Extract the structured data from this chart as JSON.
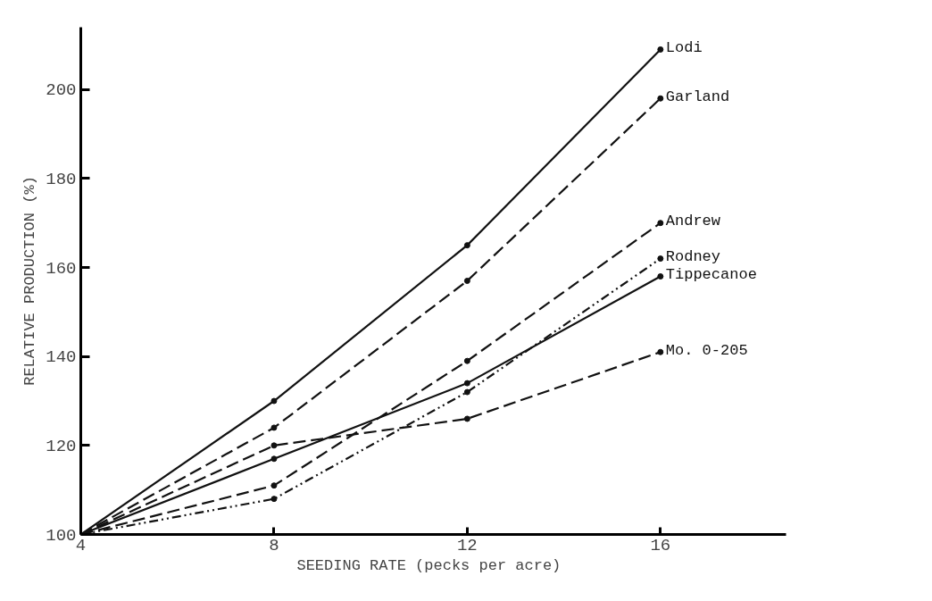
{
  "chart_data": {
    "type": "line",
    "xlabel": "SEEDING RATE  (pecks per acre)",
    "ylabel": "RELATIVE PRODUCTION (%)",
    "x": [
      4,
      8,
      12,
      16
    ],
    "xlim": [
      4,
      18.6
    ],
    "xticks": [
      4,
      8,
      12,
      16
    ],
    "ylim": [
      100,
      214
    ],
    "yticks": [
      100,
      120,
      140,
      160,
      180,
      200
    ],
    "grid": false,
    "marker": "circle",
    "series": [
      {
        "name": "Lodi",
        "color": "#111111",
        "line_style": "solid",
        "values": [
          100,
          130,
          165,
          209
        ]
      },
      {
        "name": "Garland",
        "color": "#111111",
        "line_style": "dashed",
        "values": [
          100,
          124,
          157,
          198
        ]
      },
      {
        "name": "Andrew",
        "color": "#111111",
        "line_style": "dashed",
        "values": [
          100,
          111,
          139,
          170
        ]
      },
      {
        "name": "Rodney",
        "color": "#111111",
        "line_style": "dotted",
        "values": [
          100,
          108,
          132,
          162
        ]
      },
      {
        "name": "Tippecanoe",
        "color": "#111111",
        "line_style": "solid",
        "values": [
          100,
          117,
          134,
          158
        ]
      },
      {
        "name": "Mo. 0-205",
        "color": "#111111",
        "line_style": "dashed",
        "values": [
          100,
          120,
          126,
          141
        ]
      }
    ]
  }
}
